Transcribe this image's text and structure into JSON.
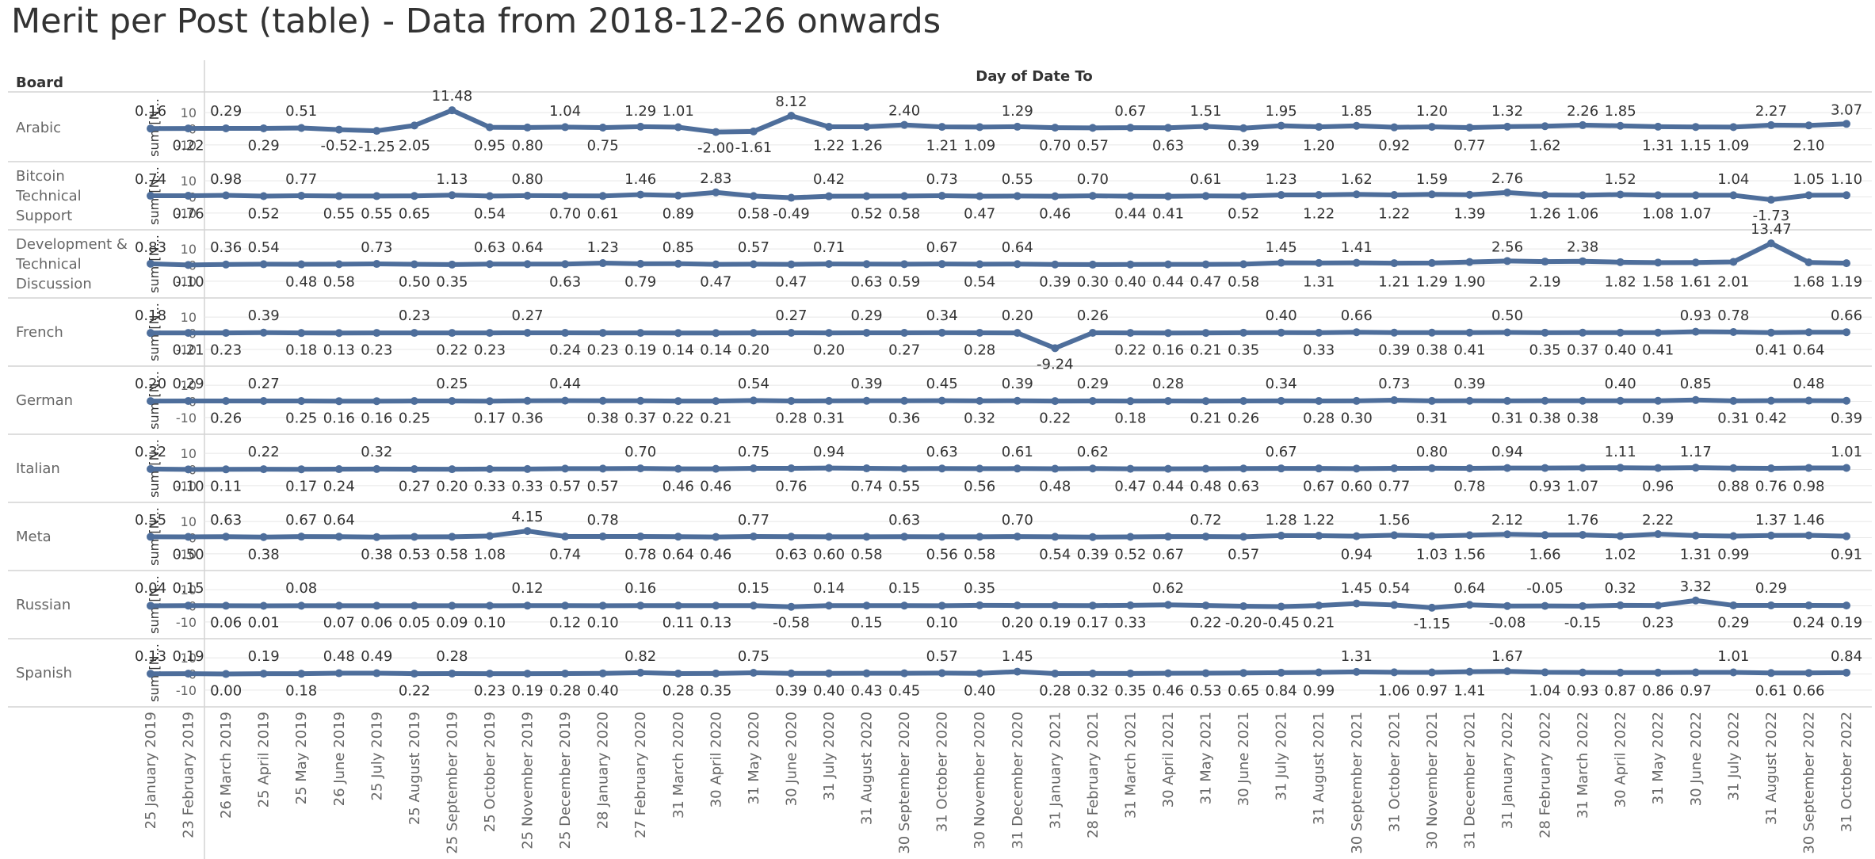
{
  "title": "Merit per Post (table) - Data from 2018-12-26 onwards",
  "colors": {
    "line": "#4E6E9B",
    "grid": "#e8e8e8",
    "border": "#d4d4d4",
    "text": "#333333",
    "muted": "#666666"
  },
  "chart_data": {
    "type": "line",
    "title": "Merit per Post (table) - Data from 2018-12-26 onwards",
    "row_header": "Board",
    "column_header": "Day of Date To",
    "ylabel": "sum([N...",
    "yticks": [
      10,
      0,
      -10
    ],
    "ylim": [
      -13,
      15
    ],
    "x": [
      "25 January 2019",
      "23 February 2019",
      "26 March 2019",
      "25 April 2019",
      "25 May 2019",
      "26 June 2019",
      "25 July 2019",
      "25 August 2019",
      "25 September 2019",
      "25 October 2019",
      "25 November 2019",
      "25 December 2019",
      "28 January 2020",
      "27 February 2020",
      "31 March 2020",
      "30 April 2020",
      "31 May 2020",
      "30 June 2020",
      "31 July 2020",
      "31 August 2020",
      "30 September 2020",
      "31 October 2020",
      "30 November 2020",
      "31 December 2020",
      "31 January 2021",
      "28 February 2021",
      "31 March 2021",
      "30 April 2021",
      "31 May 2021",
      "30 June 2021",
      "31 July 2021",
      "31 August 2021",
      "30 September 2021",
      "31 October 2021",
      "30 November 2021",
      "31 December 2021",
      "31 January 2022",
      "28 February 2022",
      "31 March 2022",
      "30 April 2022",
      "31 May 2022",
      "30 June 2022",
      "31 July 2022",
      "31 August 2022",
      "30 September 2022",
      "31 October 2022"
    ],
    "series": [
      {
        "name": "Arabic",
        "labels": [
          "0.16",
          "0.22",
          "0.29",
          "0.29",
          "0.51",
          "-0.52",
          "-1.25",
          "2.05",
          "11.48",
          "0.95",
          "0.80",
          "1.04",
          "0.75",
          "1.29",
          "1.01",
          "-2.00",
          "-1.61",
          "8.12",
          "1.22",
          "1.26",
          "2.40",
          "1.21",
          "1.09",
          "1.29",
          "0.70",
          "0.57",
          "0.67",
          "0.63",
          "1.51",
          "0.39",
          "1.95",
          "1.20",
          "1.85",
          "0.92",
          "1.20",
          "0.77",
          "1.32",
          "1.62",
          "2.26",
          "1.85",
          "1.31",
          "1.15",
          "1.09",
          "2.27",
          "2.10",
          "3.07"
        ],
        "pos": [
          "a",
          "b",
          "a",
          "b",
          "a",
          "b",
          "b",
          "b",
          "a",
          "b",
          "b",
          "a",
          "b",
          "a",
          "a",
          "b",
          "b",
          "a",
          "b",
          "b",
          "a",
          "b",
          "b",
          "a",
          "b",
          "b",
          "a",
          "b",
          "a",
          "b",
          "a",
          "b",
          "a",
          "b",
          "a",
          "b",
          "a",
          "b",
          "a",
          "a",
          "b",
          "b",
          "b",
          "a",
          "b",
          "a"
        ]
      },
      {
        "name": "Bitcoin Technical Support",
        "labels": [
          "0.74",
          "0.76",
          "0.98",
          "0.52",
          "0.77",
          "0.55",
          "0.55",
          "0.65",
          "1.13",
          "0.54",
          "0.80",
          "0.70",
          "0.61",
          "1.46",
          "0.89",
          "2.83",
          "0.58",
          "-0.49",
          "0.42",
          "0.52",
          "0.58",
          "0.73",
          "0.47",
          "0.55",
          "0.46",
          "0.70",
          "0.44",
          "0.41",
          "0.61",
          "0.52",
          "1.23",
          "1.22",
          "1.62",
          "1.22",
          "1.59",
          "1.39",
          "2.76",
          "1.26",
          "1.06",
          "1.52",
          "1.08",
          "1.07",
          "1.04",
          "-1.73",
          "1.05",
          "1.10"
        ],
        "pos": [
          "a",
          "b",
          "a",
          "b",
          "a",
          "b",
          "b",
          "b",
          "a",
          "b",
          "a",
          "b",
          "b",
          "a",
          "b",
          "a",
          "b",
          "b",
          "a",
          "b",
          "b",
          "a",
          "b",
          "a",
          "b",
          "a",
          "b",
          "b",
          "a",
          "b",
          "a",
          "b",
          "a",
          "b",
          "a",
          "b",
          "a",
          "b",
          "b",
          "a",
          "b",
          "b",
          "a",
          "b",
          "a",
          "a"
        ]
      },
      {
        "name": "Development & Technical Discussion",
        "labels": [
          "0.83",
          "0.10",
          "0.36",
          "0.54",
          "0.48",
          "0.58",
          "0.73",
          "0.50",
          "0.35",
          "0.63",
          "0.64",
          "0.63",
          "1.23",
          "0.79",
          "0.85",
          "0.47",
          "0.57",
          "0.47",
          "0.71",
          "0.63",
          "0.59",
          "0.67",
          "0.54",
          "0.64",
          "0.39",
          "0.30",
          "0.40",
          "0.44",
          "0.47",
          "0.58",
          "1.45",
          "1.31",
          "1.41",
          "1.21",
          "1.29",
          "1.90",
          "2.56",
          "2.19",
          "2.38",
          "1.82",
          "1.58",
          "1.61",
          "2.01",
          "13.47",
          "1.68",
          "1.19"
        ],
        "pos": [
          "a",
          "b",
          "a",
          "a",
          "b",
          "b",
          "a",
          "b",
          "b",
          "a",
          "a",
          "b",
          "a",
          "b",
          "a",
          "b",
          "a",
          "b",
          "a",
          "b",
          "b",
          "a",
          "b",
          "a",
          "b",
          "b",
          "b",
          "b",
          "b",
          "b",
          "a",
          "b",
          "a",
          "b",
          "b",
          "b",
          "a",
          "b",
          "a",
          "b",
          "b",
          "b",
          "b",
          "a",
          "b",
          "b"
        ]
      },
      {
        "name": "French",
        "labels": [
          "0.18",
          "0.21",
          "0.23",
          "0.39",
          "0.18",
          "0.13",
          "0.23",
          "0.23",
          "0.22",
          "0.23",
          "0.27",
          "0.24",
          "0.23",
          "0.19",
          "0.14",
          "0.14",
          "0.20",
          "0.27",
          "0.20",
          "0.29",
          "0.27",
          "0.34",
          "0.28",
          "0.20",
          "-9.24",
          "0.26",
          "0.22",
          "0.16",
          "0.21",
          "0.35",
          "0.40",
          "0.33",
          "0.66",
          "0.39",
          "0.38",
          "0.41",
          "0.50",
          "0.35",
          "0.37",
          "0.40",
          "0.41",
          "0.93",
          "0.78",
          "0.41",
          "0.64",
          "0.66"
        ],
        "pos": [
          "a",
          "b",
          "b",
          "a",
          "b",
          "b",
          "b",
          "a",
          "b",
          "b",
          "a",
          "b",
          "b",
          "b",
          "b",
          "b",
          "b",
          "a",
          "b",
          "a",
          "b",
          "a",
          "b",
          "a",
          "b",
          "a",
          "b",
          "b",
          "b",
          "b",
          "a",
          "b",
          "a",
          "b",
          "b",
          "b",
          "a",
          "b",
          "b",
          "b",
          "b",
          "a",
          "a",
          "b",
          "b",
          "a"
        ]
      },
      {
        "name": "German",
        "labels": [
          "0.20",
          "0.29",
          "0.26",
          "0.27",
          "0.25",
          "0.16",
          "0.16",
          "0.25",
          "0.25",
          "0.17",
          "0.36",
          "0.44",
          "0.38",
          "0.37",
          "0.22",
          "0.21",
          "0.54",
          "0.28",
          "0.31",
          "0.39",
          "0.36",
          "0.45",
          "0.32",
          "0.39",
          "0.22",
          "0.29",
          "0.18",
          "0.28",
          "0.21",
          "0.26",
          "0.34",
          "0.28",
          "0.30",
          "0.73",
          "0.31",
          "0.39",
          "0.31",
          "0.38",
          "0.38",
          "0.40",
          "0.39",
          "0.85",
          "0.31",
          "0.42",
          "0.48",
          "0.39"
        ],
        "pos": [
          "a",
          "a",
          "b",
          "a",
          "b",
          "b",
          "b",
          "b",
          "a",
          "b",
          "b",
          "a",
          "b",
          "b",
          "b",
          "b",
          "a",
          "b",
          "b",
          "a",
          "b",
          "a",
          "b",
          "a",
          "b",
          "a",
          "b",
          "a",
          "b",
          "b",
          "a",
          "b",
          "b",
          "a",
          "b",
          "a",
          "b",
          "b",
          "b",
          "a",
          "b",
          "a",
          "b",
          "b",
          "a",
          "b"
        ]
      },
      {
        "name": "Italian",
        "labels": [
          "0.32",
          "0.10",
          "0.11",
          "0.22",
          "0.17",
          "0.24",
          "0.32",
          "0.27",
          "0.20",
          "0.33",
          "0.33",
          "0.57",
          "0.57",
          "0.70",
          "0.46",
          "0.46",
          "0.75",
          "0.76",
          "0.94",
          "0.74",
          "0.55",
          "0.63",
          "0.56",
          "0.61",
          "0.48",
          "0.62",
          "0.47",
          "0.44",
          "0.48",
          "0.63",
          "0.67",
          "0.67",
          "0.60",
          "0.77",
          "0.80",
          "0.78",
          "0.94",
          "0.93",
          "1.07",
          "1.11",
          "0.96",
          "1.17",
          "0.88",
          "0.76",
          "0.98",
          "1.01"
        ],
        "pos": [
          "a",
          "b",
          "b",
          "a",
          "b",
          "b",
          "a",
          "b",
          "b",
          "b",
          "b",
          "b",
          "b",
          "a",
          "b",
          "b",
          "a",
          "b",
          "a",
          "b",
          "b",
          "a",
          "b",
          "a",
          "b",
          "a",
          "b",
          "b",
          "b",
          "b",
          "a",
          "b",
          "b",
          "b",
          "a",
          "b",
          "a",
          "b",
          "b",
          "a",
          "b",
          "a",
          "b",
          "b",
          "b",
          "a"
        ]
      },
      {
        "name": "Meta",
        "labels": [
          "0.55",
          "0.50",
          "0.63",
          "0.38",
          "0.67",
          "0.64",
          "0.38",
          "0.53",
          "0.58",
          "1.08",
          "4.15",
          "0.74",
          "0.78",
          "0.78",
          "0.64",
          "0.46",
          "0.77",
          "0.63",
          "0.60",
          "0.58",
          "0.63",
          "0.56",
          "0.58",
          "0.70",
          "0.54",
          "0.39",
          "0.52",
          "0.67",
          "0.72",
          "0.57",
          "1.28",
          "1.22",
          "0.94",
          "1.56",
          "1.03",
          "1.56",
          "2.12",
          "1.66",
          "1.76",
          "1.02",
          "2.22",
          "1.31",
          "0.99",
          "1.37",
          "1.46",
          "0.91"
        ],
        "pos": [
          "a",
          "b",
          "a",
          "b",
          "a",
          "a",
          "b",
          "b",
          "b",
          "b",
          "a",
          "b",
          "a",
          "b",
          "b",
          "b",
          "a",
          "b",
          "b",
          "b",
          "a",
          "b",
          "b",
          "a",
          "b",
          "b",
          "b",
          "b",
          "a",
          "b",
          "a",
          "a",
          "b",
          "a",
          "b",
          "b",
          "a",
          "b",
          "a",
          "b",
          "a",
          "b",
          "b",
          "a",
          "a",
          "b"
        ]
      },
      {
        "name": "Russian",
        "labels": [
          "0.04",
          "0.15",
          "0.06",
          "0.01",
          "0.08",
          "0.07",
          "0.06",
          "0.05",
          "0.09",
          "0.10",
          "0.12",
          "0.12",
          "0.10",
          "0.16",
          "0.11",
          "0.13",
          "0.15",
          "-0.58",
          "0.14",
          "0.15",
          "0.15",
          "0.10",
          "0.35",
          "0.20",
          "0.19",
          "0.17",
          "0.33",
          "0.62",
          "0.22",
          "-0.20",
          "-0.45",
          "0.21",
          "1.45",
          "0.54",
          "-1.15",
          "0.64",
          "-0.08",
          "-0.05",
          "-0.15",
          "0.32",
          "0.23",
          "3.32",
          "0.29",
          "0.29",
          "0.24",
          "0.19"
        ],
        "pos": [
          "a",
          "a",
          "b",
          "b",
          "a",
          "b",
          "b",
          "b",
          "b",
          "b",
          "a",
          "b",
          "b",
          "a",
          "b",
          "b",
          "a",
          "b",
          "a",
          "b",
          "a",
          "b",
          "a",
          "b",
          "b",
          "b",
          "b",
          "a",
          "b",
          "b",
          "b",
          "b",
          "a",
          "a",
          "b",
          "a",
          "b",
          "a",
          "b",
          "a",
          "b",
          "a",
          "b",
          "a",
          "b",
          "b"
        ]
      },
      {
        "name": "Spanish",
        "labels": [
          "0.13",
          "0.19",
          "0.00",
          "0.19",
          "0.18",
          "0.48",
          "0.49",
          "0.22",
          "0.28",
          "0.23",
          "0.19",
          "0.28",
          "0.40",
          "0.82",
          "0.28",
          "0.35",
          "0.75",
          "0.39",
          "0.40",
          "0.43",
          "0.45",
          "0.57",
          "0.40",
          "1.45",
          "0.28",
          "0.32",
          "0.35",
          "0.46",
          "0.53",
          "0.65",
          "0.84",
          "0.99",
          "1.31",
          "1.06",
          "0.97",
          "1.41",
          "1.67",
          "1.04",
          "0.93",
          "0.87",
          "0.86",
          "0.97",
          "1.01",
          "0.61",
          "0.66",
          "0.84"
        ],
        "pos": [
          "a",
          "a",
          "b",
          "a",
          "b",
          "a",
          "a",
          "b",
          "a",
          "b",
          "b",
          "b",
          "b",
          "a",
          "b",
          "b",
          "a",
          "b",
          "b",
          "b",
          "b",
          "a",
          "b",
          "a",
          "b",
          "b",
          "b",
          "b",
          "b",
          "b",
          "b",
          "b",
          "a",
          "b",
          "b",
          "b",
          "a",
          "b",
          "b",
          "b",
          "b",
          "b",
          "a",
          "b",
          "b",
          "a"
        ]
      }
    ]
  }
}
